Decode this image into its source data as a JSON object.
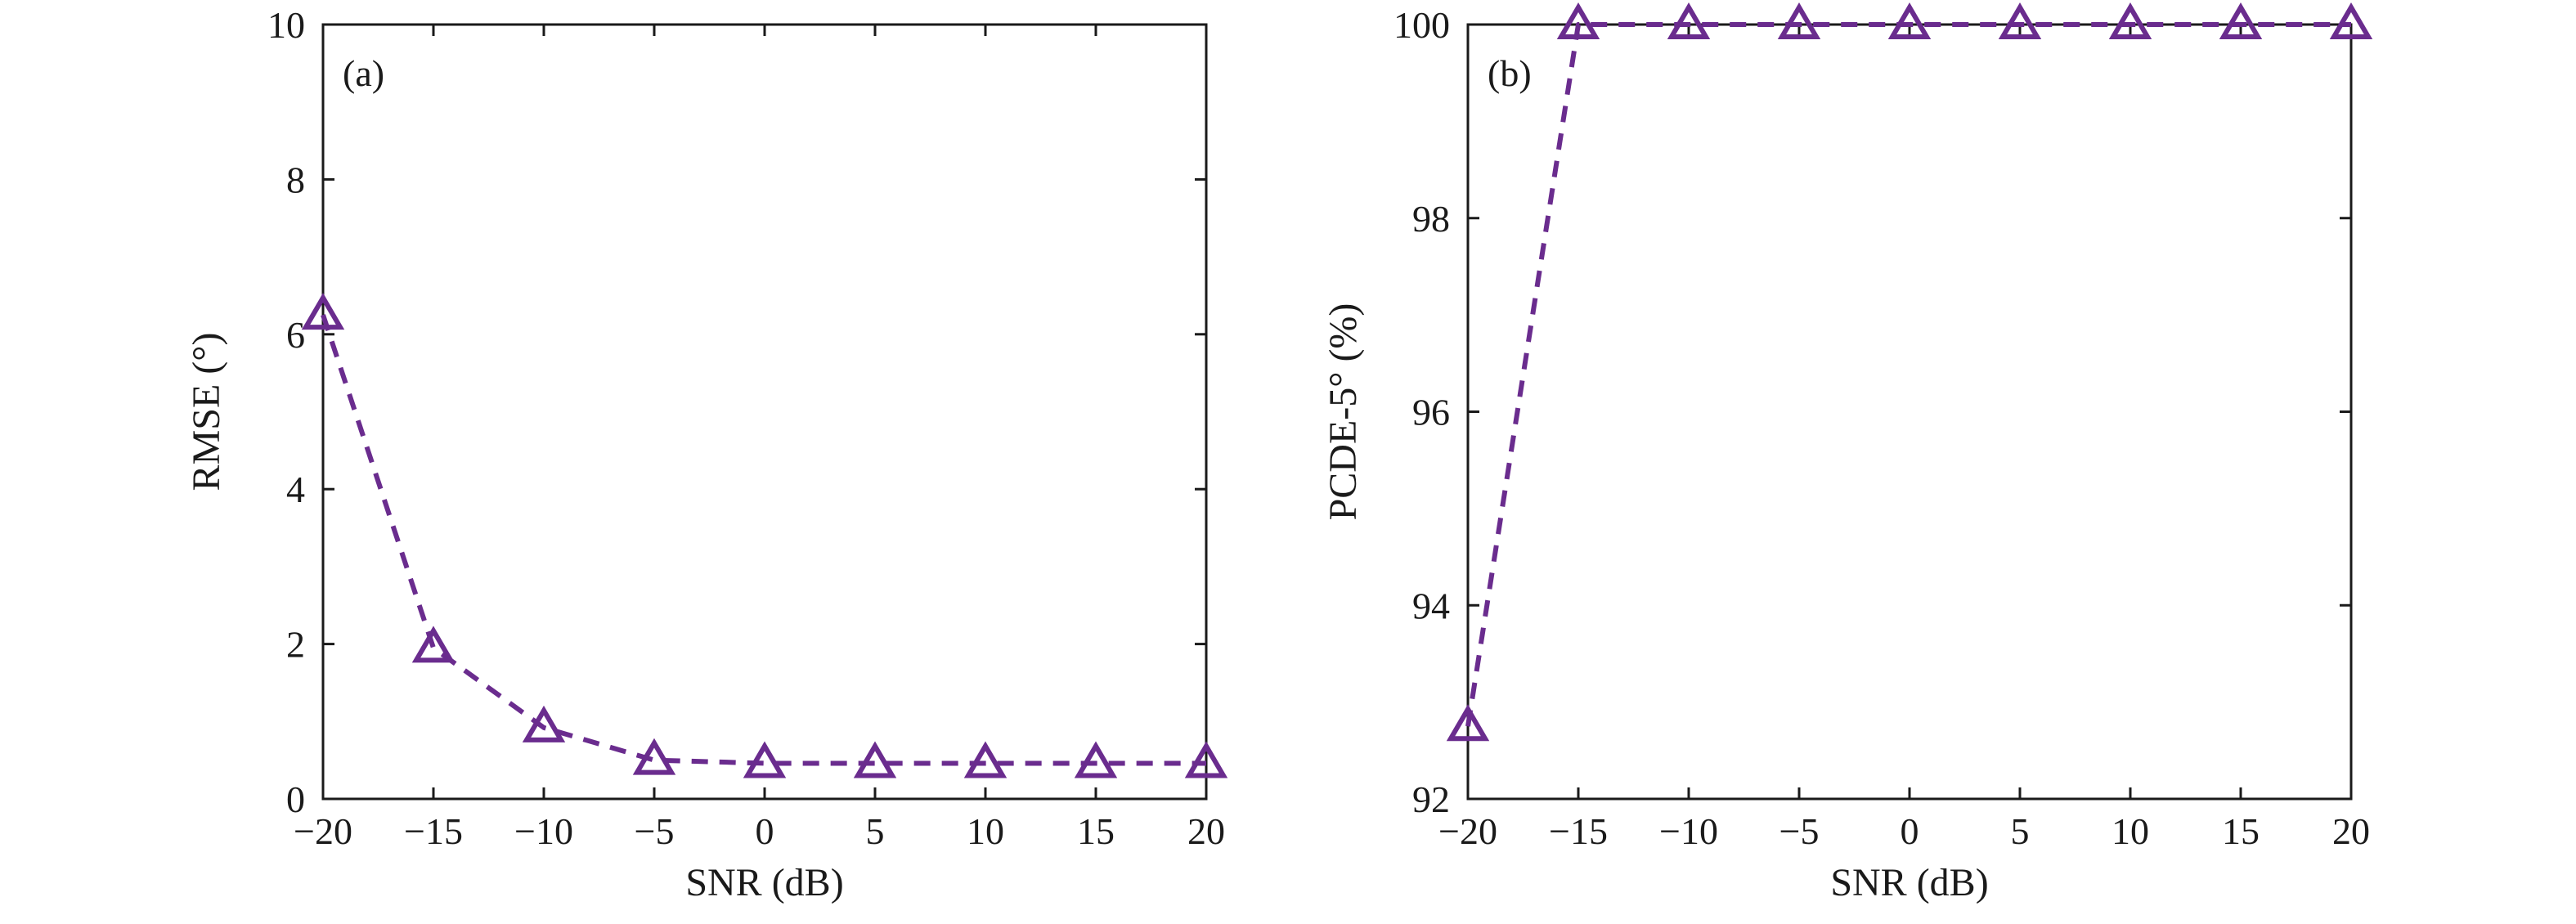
{
  "chart_data": [
    {
      "type": "line",
      "panel_label": "(a)",
      "xlabel": "SNR (dB)",
      "ylabel": "RMSE (°)",
      "x": [
        -20,
        -15,
        -10,
        -5,
        0,
        5,
        10,
        15,
        20
      ],
      "x_ticks": [
        -20,
        -15,
        -10,
        -5,
        0,
        5,
        10,
        15,
        20
      ],
      "x_tick_labels": [
        "−20",
        "−15",
        "−10",
        "−5",
        "0",
        "5",
        "10",
        "15",
        "20"
      ],
      "y_ticks": [
        0,
        2,
        4,
        6,
        8,
        10
      ],
      "y_tick_labels": [
        "0",
        "2",
        "4",
        "6",
        "8",
        "10"
      ],
      "xlim": [
        -20,
        20
      ],
      "ylim": [
        0,
        10
      ],
      "grid": false,
      "series": [
        {
          "values": [
            6.25,
            1.95,
            0.92,
            0.5,
            0.46,
            0.46,
            0.46,
            0.46,
            0.46
          ],
          "color": "#6a2c8e",
          "marker": "triangle",
          "line_style": "dashed"
        }
      ]
    },
    {
      "type": "line",
      "panel_label": "(b)",
      "xlabel": "SNR (dB)",
      "ylabel": "PCDE-5° (%)",
      "x": [
        -20,
        -15,
        -10,
        -5,
        0,
        5,
        10,
        15,
        20
      ],
      "x_ticks": [
        -20,
        -15,
        -10,
        -5,
        0,
        5,
        10,
        15,
        20
      ],
      "x_tick_labels": [
        "−20",
        "−15",
        "−10",
        "−5",
        "0",
        "5",
        "10",
        "15",
        "20"
      ],
      "y_ticks": [
        92,
        94,
        96,
        98,
        100
      ],
      "y_tick_labels": [
        "92",
        "94",
        "96",
        "98",
        "100"
      ],
      "xlim": [
        -20,
        20
      ],
      "ylim": [
        92,
        100
      ],
      "grid": false,
      "series": [
        {
          "values": [
            92.75,
            100,
            100,
            100,
            100,
            100,
            100,
            100,
            100
          ],
          "color": "#6a2c8e",
          "marker": "triangle",
          "line_style": "dashed"
        }
      ]
    }
  ]
}
